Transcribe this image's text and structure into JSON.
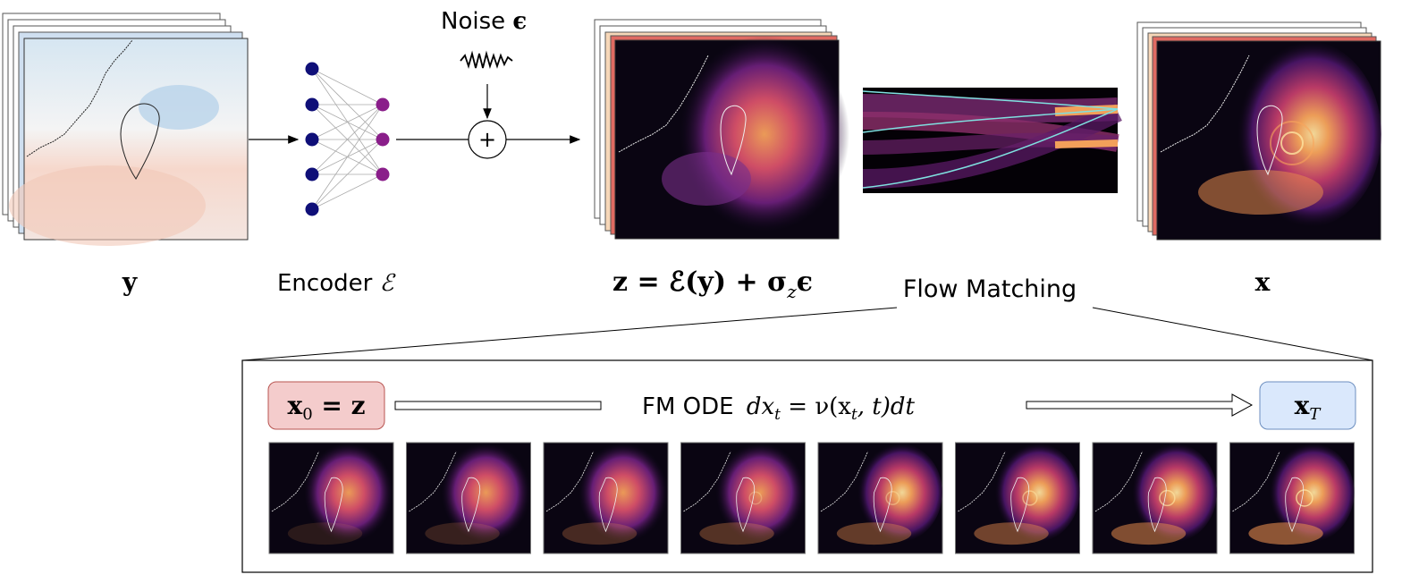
{
  "labels": {
    "y": "y",
    "encoder_text": "Encoder ",
    "encoder_sym": "ℰ",
    "noise_text": "Noise ",
    "noise_sym": "ϵ",
    "plus": "+",
    "z_eq": "z = ℰ(y) + σ",
    "z_sub": "z",
    "z_eps": "ϵ",
    "flow_matching": "Flow Matching",
    "x": "x"
  },
  "detail": {
    "x0_main": "x",
    "x0_sub": "0",
    "x0_rest": " = z",
    "fm_ode_text": "FM ODE ",
    "ode_d": "dx",
    "ode_t": "t",
    "ode_eq": " = ν(x",
    "ode_t2": "t",
    "ode_tail": ", t)dt",
    "xT_main": "x",
    "xT_sub": "T"
  },
  "colors": {
    "encoder_input": "#0f0f78",
    "encoder_output": "#8a1e8a",
    "x0_fill": "#f4cccc",
    "x0_stroke": "#b85450",
    "xT_fill": "#dae8fc",
    "xT_stroke": "#6c8ebf",
    "flow_curve": "#7fe0e0"
  },
  "steps": [
    {
      "name": "step-1"
    },
    {
      "name": "step-2"
    },
    {
      "name": "step-3"
    },
    {
      "name": "step-4"
    },
    {
      "name": "step-5"
    },
    {
      "name": "step-6"
    },
    {
      "name": "step-7"
    },
    {
      "name": "step-8"
    }
  ]
}
